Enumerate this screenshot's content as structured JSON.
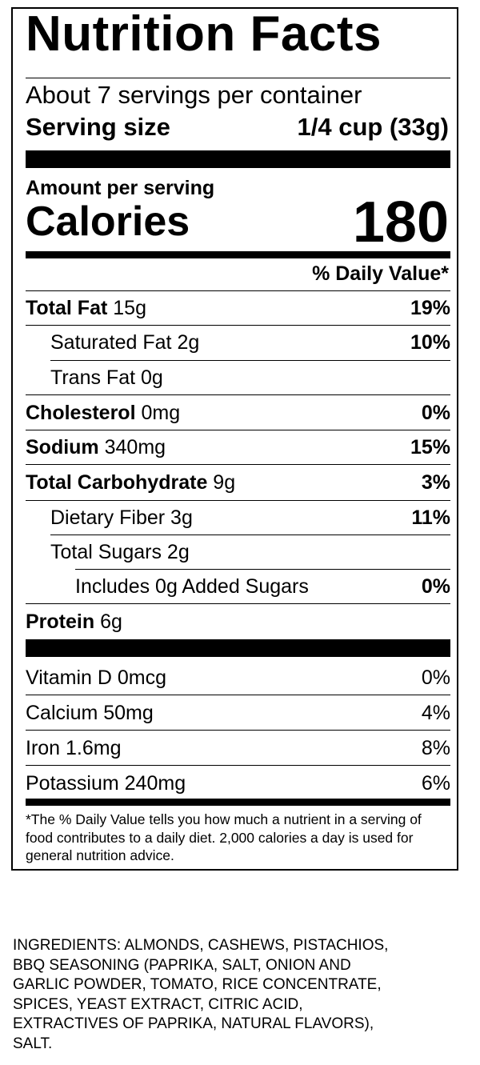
{
  "panel": {
    "title": "Nutrition Facts",
    "servings_per_container": "About 7 servings per container",
    "serving_size_label": "Serving size",
    "serving_size_value": "1/4 cup (33g)",
    "amount_per_serving": "Amount per serving",
    "calories_label": "Calories",
    "calories_value": "180",
    "daily_value_header": "% Daily Value*",
    "nutrients": [
      {
        "name": "Total Fat",
        "amount": "15g",
        "dv": "19%"
      },
      {
        "name": "Saturated Fat",
        "amount": "2g",
        "dv": "10%"
      },
      {
        "name": "Trans Fat",
        "amount": "0g",
        "dv": ""
      },
      {
        "name": "Cholesterol",
        "amount": "0mg",
        "dv": "0%"
      },
      {
        "name": "Sodium",
        "amount": "340mg",
        "dv": "15%"
      },
      {
        "name": "Total Carbohydrate",
        "amount": "9g",
        "dv": "3%"
      },
      {
        "name": "Dietary Fiber",
        "amount": "3g",
        "dv": "11%"
      },
      {
        "name": "Total Sugars",
        "amount": "2g",
        "dv": ""
      },
      {
        "name": "Includes 0g Added Sugars",
        "amount": "",
        "dv": "0%"
      },
      {
        "name": "Protein",
        "amount": "6g",
        "dv": ""
      }
    ],
    "vitamins": [
      {
        "label": "Vitamin D 0mcg",
        "dv": "0%"
      },
      {
        "label": "Calcium 50mg",
        "dv": "4%"
      },
      {
        "label": "Iron 1.6mg",
        "dv": "8%"
      },
      {
        "label": "Potassium 240mg",
        "dv": "6%"
      }
    ],
    "footnote": "*The % Daily Value tells you how much a nutrient in a serving of food contributes to a daily diet. 2,000 calories a day is used for general nutrition advice."
  },
  "ingredients": {
    "lines": [
      "INGREDIENTS: ALMONDS, CASHEWS, PISTACHIOS,",
      "BBQ SEASONING (PAPRIKA, SALT, ONION AND",
      "GARLIC POWDER, TOMATO, RICE CONCENTRATE,",
      "SPICES, YEAST EXTRACT, CITRIC ACID,",
      "EXTRACTIVES OF PAPRIKA, NATURAL FLAVORS),",
      "SALT."
    ]
  }
}
